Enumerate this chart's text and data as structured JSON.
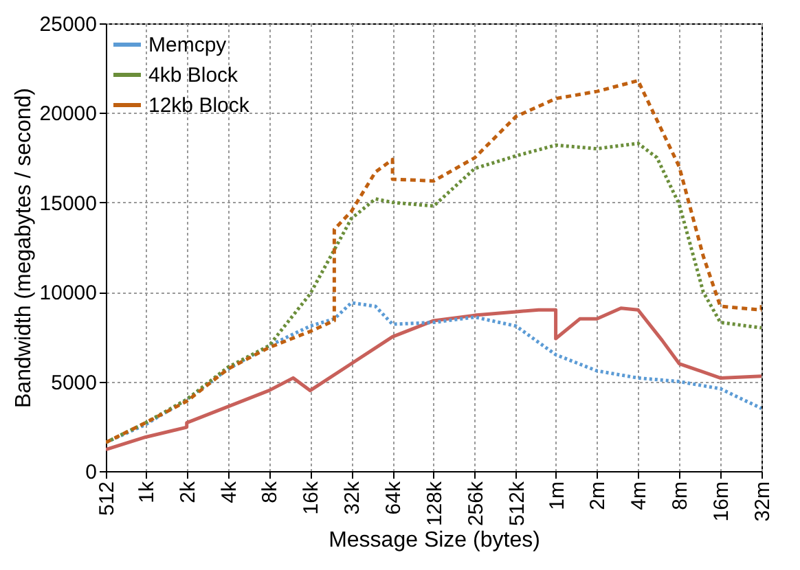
{
  "chart_data": {
    "type": "line",
    "xlabel": "Message Size (bytes)",
    "ylabel": "Bandwidth (megabytes / second)",
    "log": "x",
    "grid": true,
    "legend": "top left",
    "xlim": [
      512,
      32000000
    ],
    "ylim": [
      0,
      25000
    ],
    "xticks": [
      {
        "value": 512,
        "label": "512"
      },
      {
        "value": 1000,
        "label": "1k"
      },
      {
        "value": 2000,
        "label": "2k"
      },
      {
        "value": 4000,
        "label": "4k"
      },
      {
        "value": 8000,
        "label": "8k"
      },
      {
        "value": 16000,
        "label": "16k"
      },
      {
        "value": 32000,
        "label": "32k"
      },
      {
        "value": 64000,
        "label": "64k"
      },
      {
        "value": 128000,
        "label": "128k"
      },
      {
        "value": 256000,
        "label": "256k"
      },
      {
        "value": 512000,
        "label": "512k"
      },
      {
        "value": 1000000,
        "label": "1m"
      },
      {
        "value": 2000000,
        "label": "2m"
      },
      {
        "value": 4000000,
        "label": "4m"
      },
      {
        "value": 8000000,
        "label": "8m"
      },
      {
        "value": 16000000,
        "label": "16m"
      },
      {
        "value": 32000000,
        "label": "32m"
      }
    ],
    "yticks": [
      0,
      5000,
      10000,
      15000,
      20000,
      25000
    ],
    "series": [
      {
        "color": "#c8605a",
        "line_style": "solid",
        "x": [
          512,
          1000,
          2000,
          2000,
          4000,
          8000,
          12000,
          16000,
          32000,
          64000,
          128000,
          256000,
          512000,
          750000,
          1000000,
          1000000,
          1500000,
          2000000,
          3000000,
          4000000,
          6000000,
          8000000,
          16000000,
          32000000
        ],
        "values": [
          1200,
          1900,
          2450,
          2700,
          3600,
          4500,
          5200,
          4500,
          6000,
          7500,
          8400,
          8700,
          8900,
          9000,
          9000,
          7400,
          8500,
          8500,
          9100,
          9000,
          7300,
          6000,
          5200,
          5300
        ]
      },
      {
        "name": "Memcpy",
        "color": "#5b9bd5",
        "line_style": "dotted",
        "x": [
          512,
          1000,
          2000,
          4000,
          8000,
          16000,
          24000,
          32000,
          48000,
          64000,
          128000,
          256000,
          512000,
          1000000,
          2000000,
          4000000,
          8000000,
          16000000,
          32000000
        ],
        "values": [
          1600,
          2600,
          4000,
          5700,
          7000,
          8100,
          8500,
          9400,
          9200,
          8200,
          8300,
          8600,
          8100,
          6500,
          5600,
          5200,
          5000,
          4600,
          3500
        ]
      },
      {
        "name": "4kb Block",
        "color": "#6b8e3a",
        "line_style": "dotted",
        "x": [
          512,
          1000,
          2000,
          4000,
          8000,
          16000,
          32000,
          48000,
          64000,
          128000,
          256000,
          512000,
          1000000,
          2000000,
          4000000,
          5500000,
          8000000,
          12000000,
          16000000,
          32000000
        ],
        "values": [
          1600,
          2700,
          4000,
          5800,
          7000,
          9900,
          14100,
          15200,
          15000,
          14800,
          16900,
          17600,
          18200,
          18000,
          18300,
          17500,
          14900,
          10000,
          8300,
          8000
        ]
      },
      {
        "name": "12kb Block",
        "color": "#c06010",
        "line_style": "dashed",
        "x": [
          512,
          1000,
          2000,
          4000,
          8000,
          16000,
          24000,
          24000,
          32000,
          48000,
          64000,
          64000,
          128000,
          256000,
          512000,
          1000000,
          2000000,
          4000000,
          8000000,
          12000000,
          16000000,
          32000000,
          32000000
        ],
        "values": [
          1600,
          2700,
          3900,
          5700,
          6900,
          7800,
          8400,
          13500,
          14500,
          16700,
          17400,
          16300,
          16200,
          17500,
          19800,
          20800,
          21200,
          21800,
          17000,
          12000,
          9200,
          9000,
          9500
        ]
      }
    ]
  }
}
